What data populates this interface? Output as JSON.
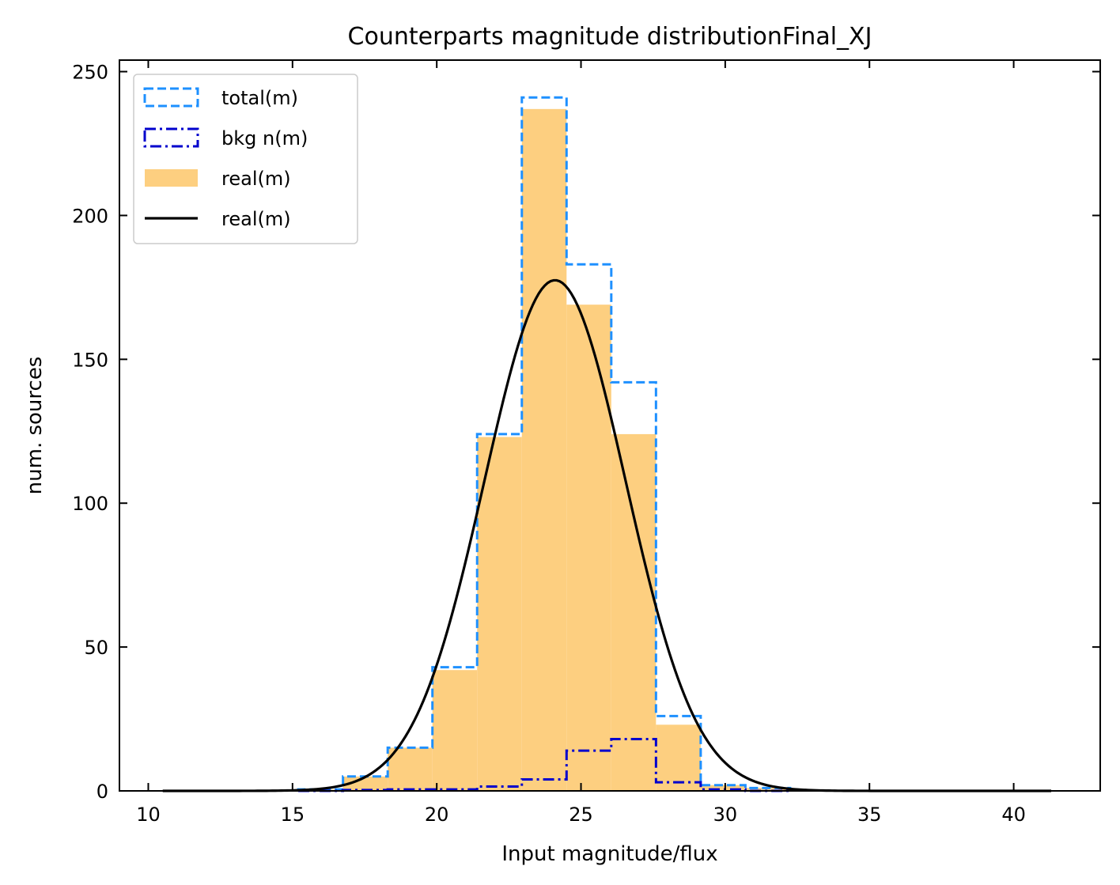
{
  "chart_data": {
    "type": "bar",
    "title": "Counterparts magnitude distributionFinal_XJ",
    "xlabel": "Input magnitude/flux",
    "ylabel": "num. sources",
    "xlim": [
      9.0,
      43.0
    ],
    "ylim": [
      0,
      254
    ],
    "xticks": [
      10,
      15,
      20,
      25,
      30,
      35,
      40
    ],
    "yticks": [
      0,
      50,
      100,
      150,
      200,
      250
    ],
    "grid": false,
    "legend_position": "top-left",
    "bin_edges": [
      15.2,
      16.75,
      18.3,
      19.85,
      21.4,
      22.95,
      24.5,
      26.05,
      27.6,
      29.15,
      30.7,
      32.25
    ],
    "series": [
      {
        "name": "total(m)",
        "kind": "step",
        "style": "dashed",
        "color": "#1E90FF",
        "values": [
          0.5,
          5,
          15,
          43,
          124,
          241,
          183,
          142,
          26,
          2,
          1
        ]
      },
      {
        "name": "bkg n(m)",
        "kind": "step",
        "style": "dashdot",
        "color": "#0000CD",
        "values": [
          0,
          0.3,
          0.5,
          0.5,
          1.5,
          4,
          14,
          18,
          3,
          0.5,
          0
        ]
      },
      {
        "name": "real(m)",
        "kind": "bar",
        "color": "#FDCF80",
        "values": [
          0.5,
          5,
          15,
          42,
          123,
          237,
          169,
          124,
          23,
          2,
          1
        ]
      },
      {
        "name": "real(m)",
        "kind": "curve",
        "color": "#000000",
        "gaussian": {
          "amplitude": 177.5,
          "mean": 24.1,
          "sigma": 2.45,
          "x_range": [
            10.5,
            41.3
          ]
        }
      }
    ]
  }
}
